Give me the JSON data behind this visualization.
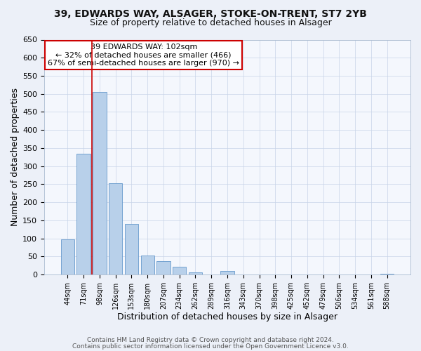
{
  "title1": "39, EDWARDS WAY, ALSAGER, STOKE-ON-TRENT, ST7 2YB",
  "title2": "Size of property relative to detached houses in Alsager",
  "xlabel": "Distribution of detached houses by size in Alsager",
  "ylabel": "Number of detached properties",
  "bar_labels": [
    "44sqm",
    "71sqm",
    "98sqm",
    "126sqm",
    "153sqm",
    "180sqm",
    "207sqm",
    "234sqm",
    "262sqm",
    "289sqm",
    "316sqm",
    "343sqm",
    "370sqm",
    "398sqm",
    "425sqm",
    "452sqm",
    "479sqm",
    "506sqm",
    "534sqm",
    "561sqm",
    "588sqm"
  ],
  "bar_values": [
    97,
    335,
    505,
    253,
    140,
    53,
    38,
    22,
    7,
    0,
    10,
    0,
    0,
    0,
    0,
    0,
    0,
    0,
    0,
    0,
    3
  ],
  "bar_color": "#b8d0ea",
  "bar_edge_color": "#6699cc",
  "vline_x": 1.5,
  "vline_color": "#cc0000",
  "annotation_text": "39 EDWARDS WAY: 102sqm\n← 32% of detached houses are smaller (466)\n67% of semi-detached houses are larger (970) →",
  "annotation_box_color": "#ffffff",
  "annotation_box_edge_color": "#cc0000",
  "ylim": [
    0,
    650
  ],
  "yticks": [
    0,
    50,
    100,
    150,
    200,
    250,
    300,
    350,
    400,
    450,
    500,
    550,
    600,
    650
  ],
  "footer1": "Contains HM Land Registry data © Crown copyright and database right 2024.",
  "footer2": "Contains public sector information licensed under the Open Government Licence v3.0.",
  "background_color": "#ecf0f8",
  "plot_bg_color": "#f4f7fd",
  "grid_color": "#c8d4e8"
}
